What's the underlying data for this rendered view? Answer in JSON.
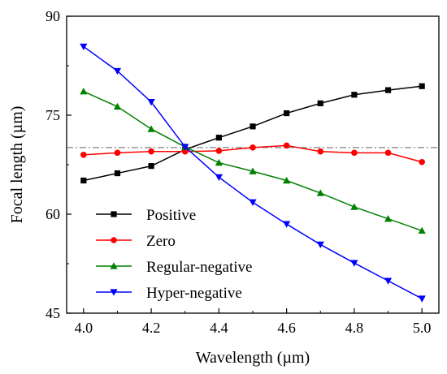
{
  "chart_data": {
    "type": "line",
    "xlabel": "Wavelength (µm)",
    "ylabel": "Focal length (µm)",
    "xlim": [
      3.95,
      5.05
    ],
    "ylim": [
      45,
      90
    ],
    "xticks": [
      "4.0",
      "4.2",
      "4.4",
      "4.6",
      "4.8",
      "5.0"
    ],
    "xtick_values": [
      4.0,
      4.2,
      4.4,
      4.6,
      4.8,
      5.0
    ],
    "yticks": [
      "45",
      "60",
      "75",
      "90"
    ],
    "ytick_values": [
      45,
      60,
      75,
      90
    ],
    "grid": false,
    "legend_position": "bottom-left",
    "reference_line": {
      "y": 70.1,
      "style": "dash-dot",
      "color": "#808080"
    },
    "x": [
      4.0,
      4.1,
      4.2,
      4.3,
      4.4,
      4.5,
      4.6,
      4.7,
      4.8,
      4.9,
      5.0
    ],
    "series": [
      {
        "name": "Positive",
        "color": "#000000",
        "marker": "square",
        "values": [
          65.1,
          66.2,
          67.3,
          69.8,
          71.6,
          73.3,
          75.3,
          76.8,
          78.1,
          78.8,
          79.4
        ]
      },
      {
        "name": "Zero",
        "color": "#ff0000",
        "marker": "circle",
        "values": [
          69.0,
          69.3,
          69.5,
          69.5,
          69.6,
          70.1,
          70.4,
          69.5,
          69.3,
          69.3,
          67.9
        ]
      },
      {
        "name": "Regular-negative",
        "color": "#008000",
        "marker": "triangle-up",
        "values": [
          78.6,
          76.3,
          72.9,
          70.2,
          67.8,
          66.5,
          65.1,
          63.2,
          61.1,
          59.3,
          57.5
        ]
      },
      {
        "name": "Hyper-negative",
        "color": "#0000ff",
        "marker": "triangle-down",
        "values": [
          85.4,
          81.7,
          77.0,
          70.2,
          65.6,
          61.8,
          58.5,
          55.4,
          52.6,
          49.9,
          47.2
        ]
      }
    ]
  }
}
